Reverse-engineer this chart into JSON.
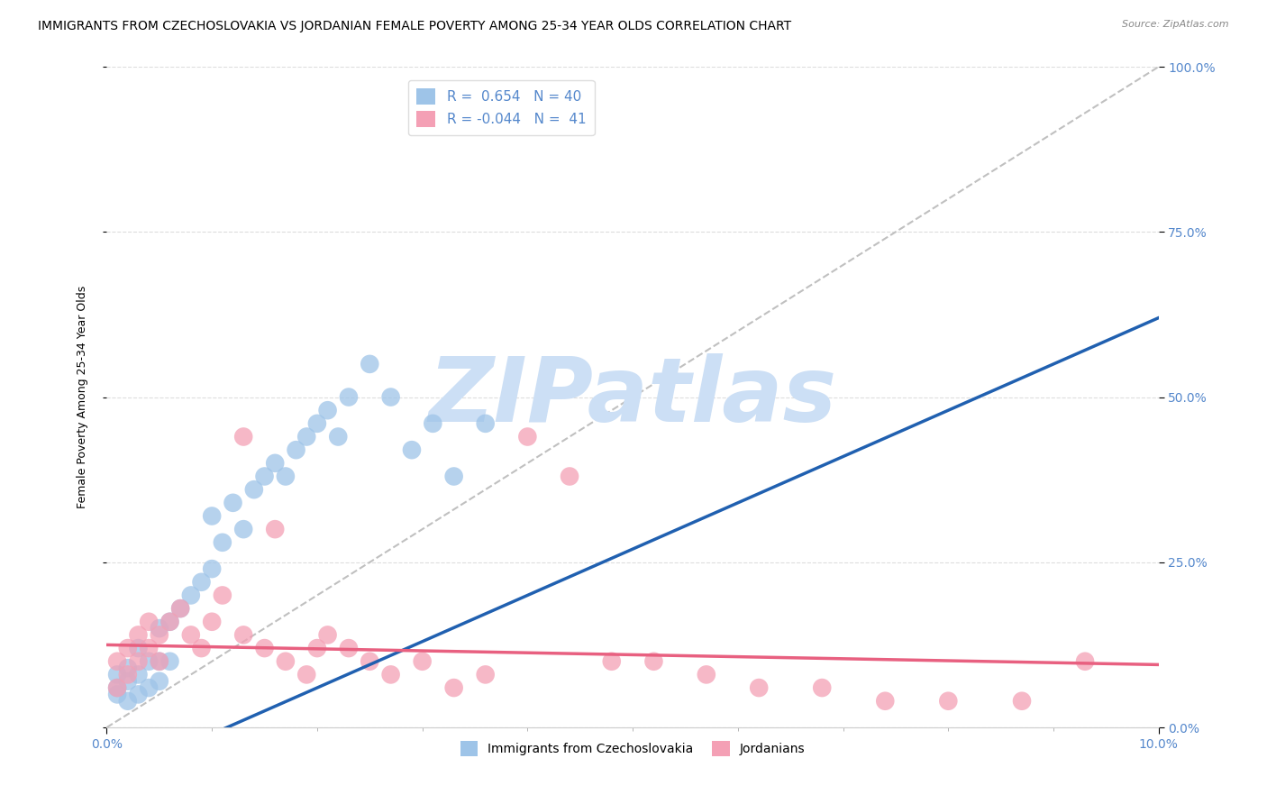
{
  "title": "IMMIGRANTS FROM CZECHOSLOVAKIA VS JORDANIAN FEMALE POVERTY AMONG 25-34 YEAR OLDS CORRELATION CHART",
  "source": "Source: ZipAtlas.com",
  "ylabel_left": "Female Poverty Among 25-34 Year Olds",
  "xlabel": "",
  "xlim": [
    0.0,
    0.1
  ],
  "ylim": [
    0.0,
    1.0
  ],
  "color_blue": "#9ec4e8",
  "color_pink": "#f4a0b5",
  "line_blue": "#2060b0",
  "line_pink": "#e86080",
  "color_diag": "#c0c0c0",
  "watermark": "ZIPatlas",
  "watermark_color": "#ccdff5",
  "blue_scatter_x": [
    0.001,
    0.001,
    0.001,
    0.002,
    0.002,
    0.002,
    0.003,
    0.003,
    0.003,
    0.004,
    0.004,
    0.005,
    0.005,
    0.005,
    0.006,
    0.006,
    0.007,
    0.008,
    0.009,
    0.01,
    0.01,
    0.011,
    0.012,
    0.013,
    0.014,
    0.015,
    0.016,
    0.017,
    0.018,
    0.019,
    0.02,
    0.021,
    0.022,
    0.023,
    0.025,
    0.027,
    0.029,
    0.031,
    0.033,
    0.036
  ],
  "blue_scatter_y": [
    0.05,
    0.06,
    0.08,
    0.04,
    0.07,
    0.09,
    0.05,
    0.08,
    0.12,
    0.06,
    0.1,
    0.07,
    0.1,
    0.15,
    0.1,
    0.16,
    0.18,
    0.2,
    0.22,
    0.24,
    0.32,
    0.28,
    0.34,
    0.3,
    0.36,
    0.38,
    0.4,
    0.38,
    0.42,
    0.44,
    0.46,
    0.48,
    0.44,
    0.5,
    0.55,
    0.5,
    0.42,
    0.46,
    0.38,
    0.46
  ],
  "pink_scatter_x": [
    0.001,
    0.001,
    0.002,
    0.002,
    0.003,
    0.003,
    0.004,
    0.004,
    0.005,
    0.005,
    0.006,
    0.007,
    0.008,
    0.009,
    0.01,
    0.011,
    0.013,
    0.015,
    0.017,
    0.019,
    0.021,
    0.023,
    0.025,
    0.027,
    0.03,
    0.033,
    0.036,
    0.04,
    0.044,
    0.048,
    0.052,
    0.057,
    0.062,
    0.068,
    0.074,
    0.08,
    0.087,
    0.093,
    0.013,
    0.016,
    0.02
  ],
  "pink_scatter_y": [
    0.06,
    0.1,
    0.08,
    0.12,
    0.1,
    0.14,
    0.12,
    0.16,
    0.1,
    0.14,
    0.16,
    0.18,
    0.14,
    0.12,
    0.16,
    0.2,
    0.14,
    0.12,
    0.1,
    0.08,
    0.14,
    0.12,
    0.1,
    0.08,
    0.1,
    0.06,
    0.08,
    0.44,
    0.38,
    0.1,
    0.1,
    0.08,
    0.06,
    0.06,
    0.04,
    0.04,
    0.04,
    0.1,
    0.44,
    0.3,
    0.12
  ],
  "blue_line_x": [
    0.0,
    0.1
  ],
  "blue_line_y": [
    -0.08,
    0.62
  ],
  "pink_line_x": [
    0.0,
    0.1
  ],
  "pink_line_y": [
    0.125,
    0.095
  ],
  "diag_line_x": [
    0.0,
    0.1
  ],
  "diag_line_y": [
    0.0,
    1.0
  ],
  "xticks_major": [
    0.0,
    0.1
  ],
  "xticks_minor": [
    0.01,
    0.02,
    0.03,
    0.04,
    0.05,
    0.06,
    0.07,
    0.08,
    0.09
  ],
  "yticks": [
    0.0,
    0.25,
    0.5,
    0.75,
    1.0
  ],
  "grid_color": "#dddddd",
  "bg_color": "#ffffff",
  "title_fontsize": 10,
  "axis_label_fontsize": 9,
  "tick_fontsize": 10,
  "right_tick_color": "#5588cc",
  "bottom_tick_color": "#5588cc",
  "legend_fontsize": 11,
  "scatter_size": 220
}
